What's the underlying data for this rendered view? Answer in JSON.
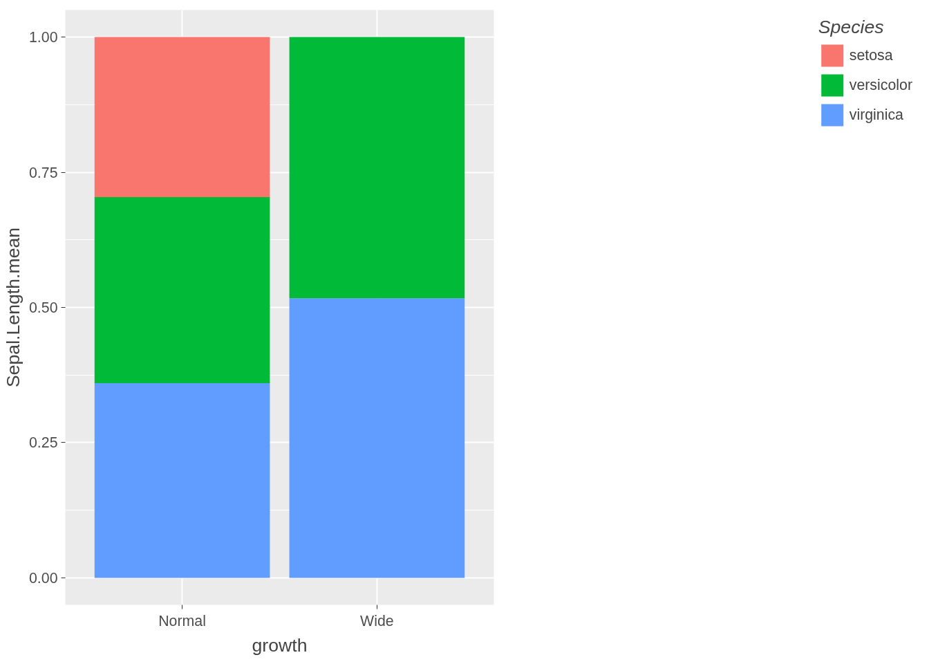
{
  "chart_data": {
    "type": "bar",
    "stacked": true,
    "xlabel": "growth",
    "ylabel": "Sepal.Length.mean",
    "legend_title": "Species",
    "categories": [
      "Normal",
      "Wide"
    ],
    "series": [
      {
        "name": "virginica",
        "color": "#619cff",
        "values": [
          0.36,
          0.517
        ]
      },
      {
        "name": "versicolor",
        "color": "#00ba38",
        "values": [
          0.344,
          0.483
        ]
      },
      {
        "name": "setosa",
        "color": "#f8766d",
        "values": [
          0.296,
          0
        ]
      }
    ],
    "ylim": [
      -0.05,
      1.05
    ],
    "yticks": [
      {
        "value": 0,
        "label": "0.00"
      },
      {
        "value": 0.25,
        "label": "0.25"
      },
      {
        "value": 0.5,
        "label": "0.50"
      },
      {
        "value": 0.75,
        "label": "0.75"
      },
      {
        "value": 1,
        "label": "1.00"
      }
    ],
    "grid": true,
    "legend": "right"
  }
}
